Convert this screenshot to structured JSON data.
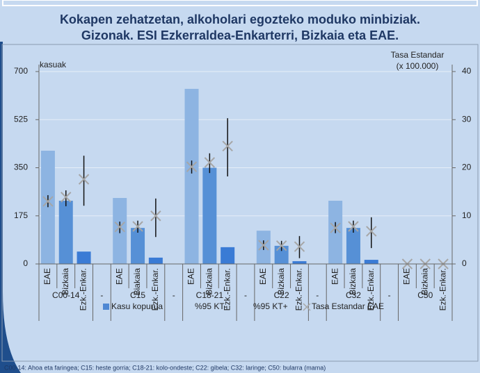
{
  "chart_data": {
    "type": "bar",
    "title_lines": [
      "Kokapen zehatzetan, alkoholari egozteko moduko minbiziak.",
      "Gizonak. ESI Ezkerraldea-Enkarterri, Bizkaia eta EAE."
    ],
    "ylabel": "kasuak",
    "y2label_lines": [
      "Tasa Estandar",
      "(x 100.000)"
    ],
    "footnote": "C00-14: Ahoa eta faringea; C15: heste gorria; C18-21: kolo-ondeste; C22: gibela; C32: laringe; C50: bularra (mama)",
    "groups": [
      {
        "label": "C00-14",
        "categories": [
          "EAE",
          "Bizkaia",
          "Ezk.-Enkar."
        ]
      },
      {
        "label": "-",
        "categories": [
          null
        ]
      },
      {
        "label": "C15",
        "categories": [
          "EAE",
          "Biakaia",
          "Ezk.-Enkar."
        ]
      },
      {
        "label": "-",
        "categories": [
          null
        ]
      },
      {
        "label": "C18-21",
        "categories": [
          "EAE",
          "Bizkaia",
          "Ezk.-Enkar."
        ]
      },
      {
        "label": "-",
        "categories": [
          null
        ]
      },
      {
        "label": "C22",
        "categories": [
          "EAE",
          "Bizkaia",
          "Ezk.-Enkar."
        ]
      },
      {
        "label": "-",
        "categories": [
          null
        ]
      },
      {
        "label": "C32",
        "categories": [
          "EAE",
          "Bizkaia",
          "Ezk.-Enkar."
        ]
      },
      {
        "label": "-",
        "categories": [
          null
        ]
      },
      {
        "label": "C50",
        "categories": [
          "EAE",
          "Bizkaia",
          "Ezk.-Enkar."
        ]
      }
    ],
    "series": [
      {
        "name": "Kasu kopurua",
        "kind": "bar",
        "color": "#4f88d3",
        "colors": [
          "#8db4e2",
          "#5690d6",
          "#3a7bd5"
        ],
        "values": [
          412,
          230,
          45,
          null,
          240,
          131,
          23,
          null,
          637,
          350,
          61,
          null,
          121,
          66,
          10,
          null,
          230,
          131,
          15,
          null,
          0,
          0,
          0
        ]
      },
      {
        "name": "%95 KT-",
        "kind": "ci_low",
        "color": "#111111",
        "values": [
          11.8,
          12.0,
          12.1,
          null,
          6.4,
          6.5,
          5.6,
          null,
          18.8,
          18.9,
          18.2,
          null,
          2.9,
          2.7,
          1.2,
          null,
          6.4,
          6.5,
          3.3,
          null,
          null,
          null,
          null
        ]
      },
      {
        "name": "%95 KT+",
        "kind": "ci_high",
        "color": "#111111",
        "values": [
          14.3,
          15.3,
          22.5,
          null,
          8.8,
          9.0,
          13.6,
          null,
          21.5,
          23.0,
          30.3,
          null,
          4.9,
          4.8,
          5.8,
          null,
          8.7,
          9.0,
          9.7,
          null,
          null,
          null,
          null
        ]
      },
      {
        "name": "Tasa Estandar EAE",
        "kind": "marker",
        "axis": "y2",
        "color": "#a6a6a6",
        "values": [
          13.0,
          13.9,
          17.6,
          null,
          7.7,
          7.8,
          10.0,
          null,
          20.2,
          21.1,
          24.5,
          null,
          3.9,
          3.8,
          3.6,
          null,
          7.5,
          7.8,
          6.8,
          null,
          0,
          0,
          0
        ]
      }
    ],
    "ylim": [
      0,
      700
    ],
    "yticks": [
      0,
      175,
      350,
      525,
      700
    ],
    "y2lim": [
      0,
      40
    ],
    "y2ticks": [
      0,
      10,
      20,
      30,
      40
    ],
    "grid": true
  }
}
